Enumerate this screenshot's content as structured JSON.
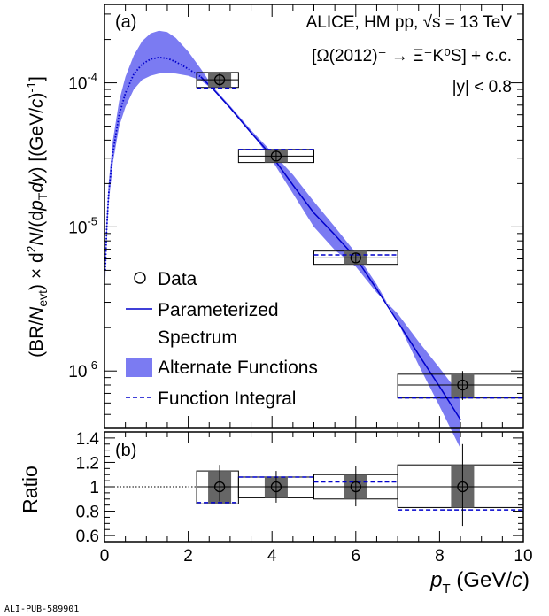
{
  "chart_data": [
    {
      "panel": "(a)",
      "type": "scatter",
      "y_scale": "log",
      "xlim": [
        0,
        10
      ],
      "ylim": [
        4e-07,
        0.00035
      ],
      "yticks": [
        "10",
        "10",
        "10"
      ],
      "ytick_exponents": [
        "-4",
        "-5",
        "-6"
      ],
      "ytick_values": [
        0.0001,
        1e-05,
        1e-06
      ],
      "ylabel": {
        "p1": "(BR/",
        "N": "N",
        "evt": "evt",
        "p2": ") × d",
        "two": "2",
        "N2": "N",
        "p3": "/(d",
        "p": "p",
        "T": "T",
        "dy": "dy",
        "p4": ") [(GeV/",
        "c": "c",
        "p5": ")",
        "exp": "-1",
        "p6": "]"
      },
      "annotations": {
        "panel_label": "(a)",
        "line1": "ALICE, HM pp, √s = 13 TeV",
        "line2": "[Ω(2012)⁻ → Ξ⁻K⁰S] + c.c.",
        "line3": "|y| < 0.8"
      },
      "legend": {
        "placement": "lower-left",
        "entries": [
          "Data",
          "Parameterized",
          "Spectrum",
          "Alternate Functions",
          "Function Integral"
        ]
      },
      "data": [
        {
          "x": 2.75,
          "xlow": 2.2,
          "xhigh": 3.2,
          "y": 0.000105,
          "stat_low": 9.5e-05,
          "stat_high": 0.000117,
          "sys_low": 9.3e-05,
          "sys_high": 0.000118,
          "func_integral": 9.2e-05
        },
        {
          "x": 4.1,
          "xlow": 3.2,
          "xhigh": 5.0,
          "y": 3.1e-05,
          "stat_low": 2.85e-05,
          "stat_high": 3.4e-05,
          "sys_low": 2.8e-05,
          "sys_high": 3.45e-05,
          "func_integral": 3.45e-05
        },
        {
          "x": 6.0,
          "xlow": 5.0,
          "xhigh": 7.0,
          "y": 6.1e-06,
          "stat_low": 5.6e-06,
          "stat_high": 6.6e-06,
          "sys_low": 5.5e-06,
          "sys_high": 6.8e-06,
          "func_integral": 6.4e-06
        },
        {
          "x": 8.55,
          "xlow": 7.0,
          "xhigh": 10.0,
          "y": 8e-07,
          "stat_low": 6.3e-07,
          "stat_high": 1e-06,
          "sys_low": 6.5e-07,
          "sys_high": 9.5e-07,
          "func_integral": 6.5e-07
        }
      ],
      "curve": {
        "x": [
          0.02,
          0.05,
          0.1,
          0.2,
          0.35,
          0.5,
          0.7,
          0.9,
          1.1,
          1.3,
          1.5,
          1.7,
          2.0,
          2.3,
          2.6,
          3.0,
          3.5,
          4.0,
          4.5,
          5.0,
          5.5,
          6.0,
          6.5,
          7.0,
          7.5,
          8.0,
          8.5
        ],
        "central": [
          5e-06,
          9.5e-06,
          1.7e-05,
          3.3e-05,
          6e-05,
          8.5e-05,
          0.000115,
          0.000135,
          0.000146,
          0.00015,
          0.000148,
          0.00014,
          0.000125,
          0.00011,
          9e-05,
          6.7e-05,
          4.5e-05,
          3.1e-05,
          1.95e-05,
          1.25e-05,
          8.8e-06,
          6.1e-06,
          3.7e-06,
          2.2e-06,
          1.3e-06,
          7.8e-07,
          4.6e-07
        ],
        "band_low": [
          4.2e-06,
          8e-06,
          1.45e-05,
          2.8e-05,
          5e-05,
          6.8e-05,
          9e-05,
          0.000105,
          0.000112,
          0.000116,
          0.000117,
          0.000116,
          0.000112,
          0.000104,
          8.9e-05,
          6.7e-05,
          4.5e-05,
          2.9e-05,
          1.7e-05,
          1e-05,
          6.9e-06,
          5.3e-06,
          3.5e-06,
          2.5e-06,
          1.6e-06,
          1.05e-06,
          6.8e-07
        ],
        "band_high": [
          5.8e-06,
          1.1e-05,
          2e-05,
          4e-05,
          7.5e-05,
          0.00011,
          0.000155,
          0.000195,
          0.00022,
          0.00023,
          0.000225,
          0.000205,
          0.000165,
          0.000125,
          9.3e-05,
          6.9e-05,
          4.7e-05,
          3.3e-05,
          2.3e-05,
          1.5e-05,
          1e-05,
          6.6e-06,
          4e-06,
          2.2e-06,
          1.1e-06,
          5.7e-07,
          2.9e-07
        ]
      }
    },
    {
      "panel": "(b)",
      "type": "scatter",
      "xlim": [
        0,
        10
      ],
      "ylim": [
        0.55,
        1.45
      ],
      "yticks": [
        0.6,
        0.8,
        1,
        1.2,
        1.4
      ],
      "ytick_labels": [
        "0.6",
        "0.8",
        "1",
        "1.2",
        "1.4"
      ],
      "xticks": [
        0,
        2,
        4,
        6,
        8,
        10
      ],
      "xtick_labels": [
        "0",
        "2",
        "4",
        "6",
        "8",
        "10"
      ],
      "ylabel": "Ratio",
      "xlabel": {
        "p": "p",
        "T": "T",
        "rest": " (GeV/",
        "c": "c",
        "close": ")"
      },
      "panel_label": "(b)",
      "reference_line": 1,
      "data": [
        {
          "x": 2.75,
          "xlow": 2.2,
          "xhigh": 3.2,
          "y": 1.0,
          "stat_low": 0.88,
          "stat_high": 1.18,
          "sys_low": 0.86,
          "sys_high": 1.13,
          "func_integral": 0.87
        },
        {
          "x": 4.1,
          "xlow": 3.2,
          "xhigh": 5.0,
          "y": 1.0,
          "stat_low": 0.87,
          "stat_high": 1.13,
          "sys_low": 0.91,
          "sys_high": 1.08,
          "func_integral": 1.08
        },
        {
          "x": 6.0,
          "xlow": 5.0,
          "xhigh": 7.0,
          "y": 1.0,
          "stat_low": 0.84,
          "stat_high": 1.17,
          "sys_low": 0.9,
          "sys_high": 1.1,
          "func_integral": 1.04
        },
        {
          "x": 8.55,
          "xlow": 7.0,
          "xhigh": 10.0,
          "y": 1.0,
          "stat_low": 0.68,
          "stat_high": 1.35,
          "sys_low": 0.83,
          "sys_high": 1.18,
          "func_integral": 0.81
        }
      ]
    }
  ],
  "footer": {
    "pub_id": "ALI-PUB-589901"
  },
  "colors": {
    "band": "#7b7bf2",
    "curve": "#0000cc",
    "sys_box": "#666666",
    "axis": "#000000"
  }
}
